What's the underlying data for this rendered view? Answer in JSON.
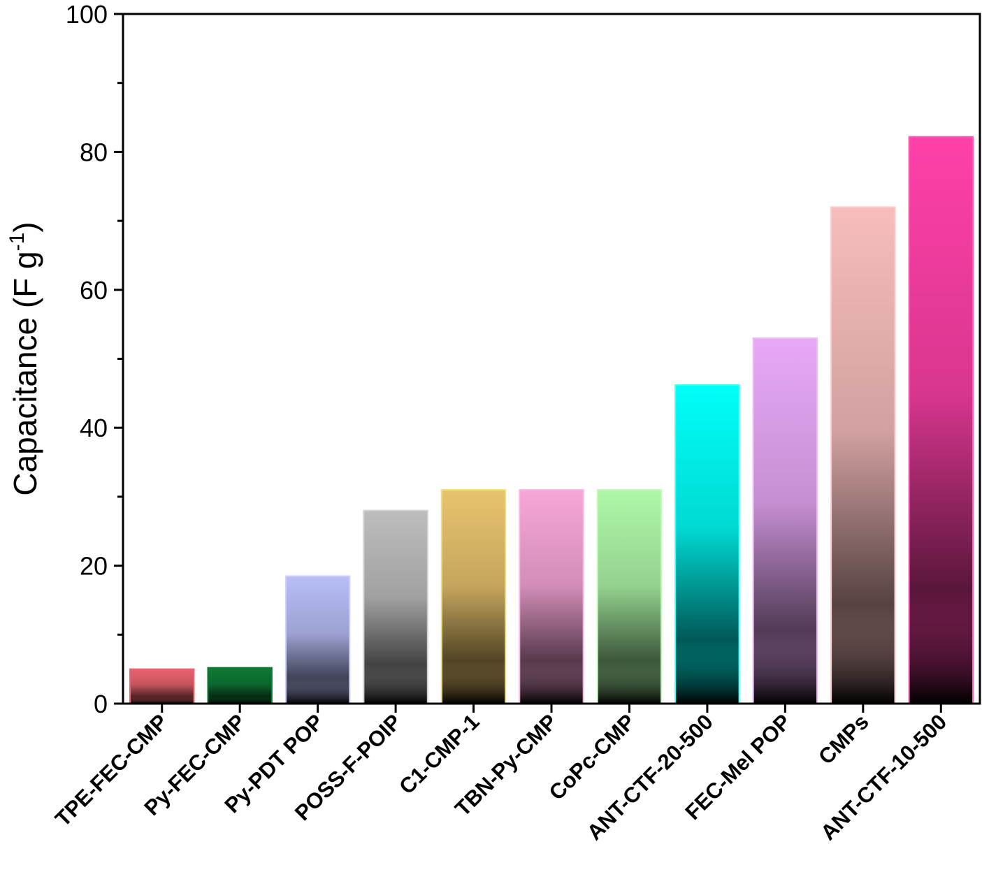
{
  "chart_data": {
    "type": "bar",
    "title": "",
    "xlabel": "",
    "ylabel": "Capacitance (F g",
    "ylabel_sup": "-1",
    "ylabel_close": ")",
    "ylim": [
      0,
      100
    ],
    "yticks": [
      0,
      20,
      40,
      60,
      80,
      100
    ],
    "grid": false,
    "categories": [
      "TPE-FEC-CMP",
      "Py-FEC-CMP",
      "Py-PDT POP",
      "POSS-F-POIP",
      "C1-CMP-1",
      "TBN-Py-CMP",
      "CoPc-CMP",
      "ANT-CTF-20-500",
      "FEC-Mel POP",
      "CMPs",
      "ANT-CTF-10-500"
    ],
    "values": [
      5,
      5.2,
      18.5,
      28,
      31,
      31,
      31,
      46.2,
      53,
      72,
      82.2
    ],
    "colors": [
      "#e8636e",
      "#0e7a36",
      "#b8bef7",
      "#bdbdbd",
      "#e8c36e",
      "#f7a6d8",
      "#aef7a8",
      "#00fff8",
      "#e8a8f7",
      "#f7bdbd",
      "#ff40a8"
    ],
    "edge_colors": [
      "#e8636e",
      "#0e7a36",
      "#cfd3fa",
      "#d0d0d0",
      "#efe07a",
      "#f7b8e0",
      "#c8f7c0",
      "#40fffa",
      "#eebcf9",
      "#f7cccc",
      "#ff60b8"
    ]
  }
}
